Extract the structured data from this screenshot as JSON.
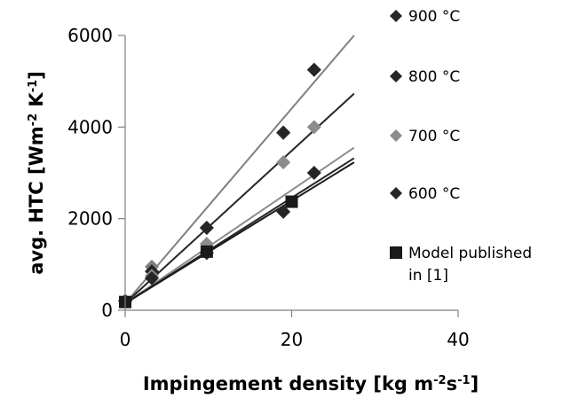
{
  "chart_data": {
    "type": "scatter",
    "xlabel": "Impingement density [kg m",
    "xlabel_sup1": "-2",
    "xlabel_mid": "s",
    "xlabel_sup2": "-1",
    "xlabel_end": "]",
    "ylabel": "avg. HTC [Wm",
    "ylabel_sup1": "-2",
    "ylabel_mid": " K",
    "ylabel_sup2": "-1",
    "ylabel_end": "]",
    "xlim": [
      0,
      40
    ],
    "ylim": [
      0,
      6000
    ],
    "xticks": [
      0,
      20,
      40
    ],
    "xtick_labels": [
      "0",
      "20",
      "40"
    ],
    "yticks": [
      0,
      2000,
      4000,
      6000
    ],
    "ytick_labels": [
      "0",
      "2000",
      "4000",
      "6000"
    ],
    "grid": false,
    "legend_position": "right",
    "series": [
      {
        "name": "900 °C",
        "color": "#808080",
        "marker": "diamond",
        "points": [
          [
            0,
            200
          ],
          [
            3.2,
            950
          ],
          [
            9.8,
            1800
          ],
          [
            19,
            3870
          ],
          [
            22.7,
            5250
          ]
        ],
        "trendline": [
          [
            0,
            150
          ],
          [
            27.5,
            6000
          ]
        ]
      },
      {
        "name": "800 °C",
        "color": "#262626",
        "marker": "diamond",
        "points": [
          [
            0,
            200
          ],
          [
            3.2,
            850
          ],
          [
            9.8,
            1800
          ],
          [
            19,
            3880
          ],
          [
            22.7,
            5250
          ]
        ],
        "trendline": [
          [
            0,
            150
          ],
          [
            27.5,
            4730
          ]
        ]
      },
      {
        "name": "700 °C",
        "color": "#8c8c8c",
        "marker": "diamond",
        "points": [
          [
            0,
            200
          ],
          [
            3.2,
            750
          ],
          [
            9.8,
            1450
          ],
          [
            19,
            3230
          ],
          [
            22.7,
            4000
          ]
        ],
        "trendline": [
          [
            0,
            150
          ],
          [
            27.5,
            3550
          ]
        ]
      },
      {
        "name": "600 °C",
        "color": "#262626",
        "marker": "diamond",
        "points": [
          [
            0,
            200
          ],
          [
            3.2,
            700
          ],
          [
            9.8,
            1250
          ],
          [
            19,
            2150
          ],
          [
            22.7,
            3000
          ]
        ],
        "trendline": [
          [
            0,
            150
          ],
          [
            27.5,
            3320
          ]
        ]
      },
      {
        "name": "Model published in [1]",
        "color": "#1a1a1a",
        "marker": "square",
        "points": [
          [
            0,
            180
          ],
          [
            9.8,
            1280
          ],
          [
            20,
            2370
          ]
        ],
        "trendline": [
          [
            0,
            150
          ],
          [
            27.5,
            3230
          ]
        ]
      }
    ]
  }
}
